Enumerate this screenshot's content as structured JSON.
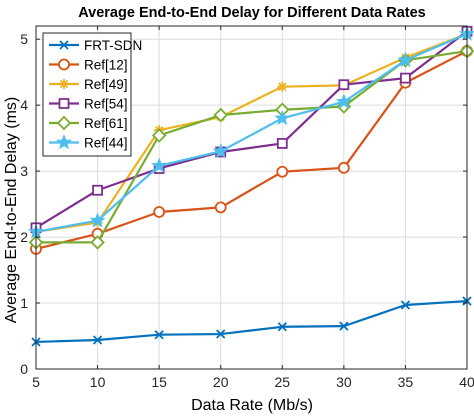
{
  "chart_data": {
    "type": "line",
    "title": "Average End-to-End Delay for Different Data Rates",
    "xlabel": "Data Rate (Mb/s)",
    "ylabel": "Average End-to-End Delay (ms)",
    "x": [
      5,
      10,
      15,
      20,
      25,
      30,
      35,
      40
    ],
    "xlim": [
      5,
      40
    ],
    "ylim": [
      0,
      5.2
    ],
    "xticks": [
      5,
      10,
      15,
      20,
      25,
      30,
      35,
      40
    ],
    "yticks": [
      0,
      1,
      2,
      3,
      4,
      5
    ],
    "grid": true,
    "legend_position": "top-left",
    "series": [
      {
        "name": "FRT-SDN",
        "color": "#0072BD",
        "marker": "x",
        "values": [
          0.41,
          0.44,
          0.52,
          0.53,
          0.64,
          0.65,
          0.97,
          1.03
        ]
      },
      {
        "name": "Ref[12]",
        "color": "#D95319",
        "marker": "circle",
        "values": [
          1.82,
          2.05,
          2.38,
          2.45,
          2.99,
          3.05,
          4.34,
          4.82
        ]
      },
      {
        "name": "Ref[49]",
        "color": "#EDB120",
        "marker": "asterisk",
        "values": [
          2.08,
          2.22,
          3.62,
          3.82,
          4.28,
          4.3,
          4.72,
          5.08
        ]
      },
      {
        "name": "Ref[54]",
        "color": "#7E2F8E",
        "marker": "square",
        "values": [
          2.14,
          2.71,
          3.04,
          3.29,
          3.42,
          4.31,
          4.41,
          5.12
        ]
      },
      {
        "name": "Ref[61]",
        "color": "#77AC30",
        "marker": "diamond",
        "values": [
          1.92,
          1.92,
          3.54,
          3.85,
          3.93,
          3.98,
          4.68,
          4.82
        ]
      },
      {
        "name": "Ref[44]",
        "color": "#4DBEEE",
        "marker": "star",
        "values": [
          2.08,
          2.25,
          3.08,
          3.3,
          3.8,
          4.05,
          4.68,
          5.08
        ]
      }
    ]
  }
}
